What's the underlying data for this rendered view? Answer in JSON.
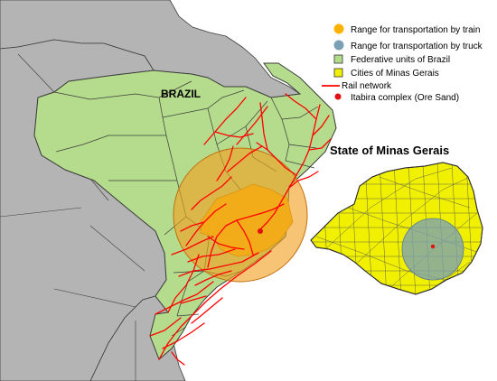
{
  "country_label": "BRAZIL",
  "inset_title": "State of Minas Gerais",
  "legend": {
    "items": [
      {
        "label": "Range for transportation by train",
        "icon": "orange-dot-icon"
      },
      {
        "label": "Range for transportation by truck",
        "icon": "blue-dot-icon"
      },
      {
        "label": "Federative units of Brazil",
        "icon": "green-square-icon"
      },
      {
        "label": "Cities of Minas Gerais",
        "icon": "yellow-square-icon"
      },
      {
        "label": "Rail network",
        "icon": "red-line-icon"
      },
      {
        "label": "Itabira complex (Ore Sand)",
        "icon": "red-dot-icon"
      }
    ]
  },
  "colors": {
    "ocean": "#ffffff",
    "neighbors": "#b4b4b4",
    "brazil_fill": "#b5dc8c",
    "borders": "#3c3c3c",
    "train_range": "#f0a01e",
    "truck_range": "#7aa0b4",
    "cities_fill": "#f0f000",
    "rail": "#ff0000",
    "itabira": "#e01010"
  }
}
